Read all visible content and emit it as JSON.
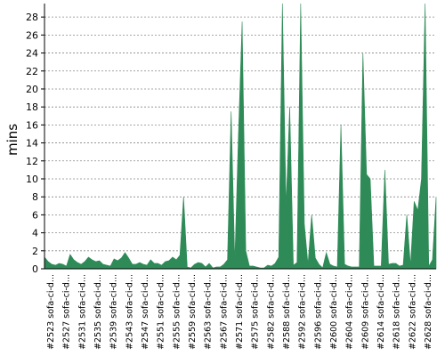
{
  "chart_data": {
    "type": "area",
    "title": "",
    "xlabel": "",
    "ylabel": "mins",
    "ylim": [
      0,
      29.5
    ],
    "yticks": [
      0,
      2,
      4,
      6,
      8,
      10,
      12,
      14,
      16,
      18,
      20,
      22,
      24,
      26,
      28
    ],
    "grid": "horizontal-dashed",
    "legend": "none",
    "color": "#2e8b57",
    "xtick_labels": [
      "#2523 sofa-ci-d...",
      "#2527 sofa-ci-d...",
      "#2531 sofa-ci-d...",
      "#2535 sofa-ci-d...",
      "#2539 sofa-ci-d...",
      "#2543 sofa-ci-d...",
      "#2547 sofa-ci-d...",
      "#2551 sofa-ci-d...",
      "#2555 sofa-ci-d...",
      "#2559 sofa-ci-d...",
      "#2563 sofa-ci-d...",
      "#2567 sofa-ci-d...",
      "#2571 sofa-ci-d...",
      "#2575 sofa-ci-d...",
      "#2582 sofa-ci-d...",
      "#2588 sofa-ci-d...",
      "#2592 sofa-ci-d...",
      "#2596 sofa-ci-d...",
      "#2600 sofa-ci-d...",
      "#2604 sofa-ci-d...",
      "#2609 sofa-ci-d...",
      "#2614 sofa-ci-d...",
      "#2618 sofa-ci-d...",
      "#2622 sofa-ci-d...",
      "#2628 sofa-ci-d..."
    ],
    "values": [
      1.3,
      0.8,
      0.5,
      0.4,
      0.6,
      0.5,
      0.3,
      1.6,
      1.0,
      0.7,
      0.5,
      0.8,
      1.3,
      1.0,
      0.8,
      0.9,
      0.5,
      0.4,
      0.3,
      1.1,
      0.9,
      1.2,
      1.8,
      1.2,
      0.5,
      0.5,
      0.7,
      0.5,
      0.4,
      1.0,
      0.6,
      0.6,
      0.4,
      0.8,
      0.9,
      1.3,
      1.0,
      1.5,
      8.0,
      0.2,
      0.1,
      0.5,
      0.7,
      0.6,
      0.2,
      0.6,
      0.1,
      0.2,
      0.2,
      0.5,
      1.0,
      17.5,
      0.8,
      15.0,
      27.5,
      2.0,
      0.3,
      0.3,
      0.2,
      0.1,
      0.1,
      0.4,
      0.3,
      0.6,
      1.3,
      30.0,
      7.0,
      18.0,
      0.4,
      0.7,
      29.5,
      5.0,
      0.5,
      6.0,
      1.2,
      0.5,
      0.1,
      1.8,
      0.5,
      0.3,
      0.2,
      16.0,
      0.5,
      0.3,
      0.2,
      0.2,
      0.2,
      24.0,
      10.5,
      10.0,
      0.3,
      0.3,
      0.3,
      11.0,
      0.5,
      0.6,
      0.6,
      0.3,
      0.4,
      6.0,
      0.4,
      7.5,
      6.5,
      10.0,
      30.0,
      0.3,
      1.0,
      8.0
    ]
  }
}
